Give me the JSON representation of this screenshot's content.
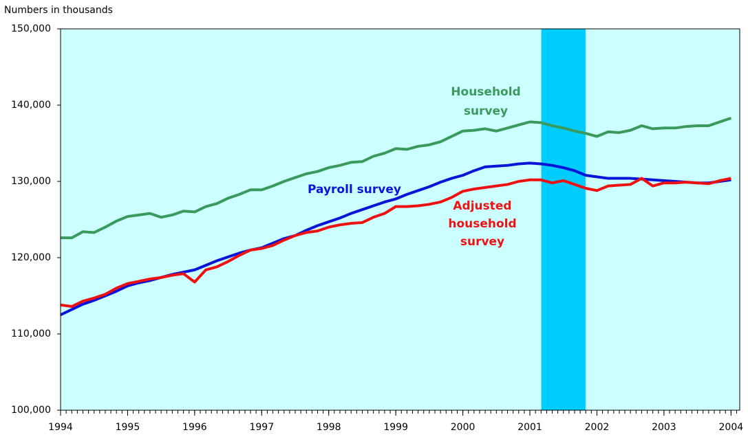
{
  "chart_data": {
    "type": "line",
    "subtitle": "Numbers in thousands",
    "background": "#ccffff",
    "shading": {
      "range": [
        2001.17,
        2001.83
      ],
      "color": "#00ccff"
    },
    "xlim": [
      1994,
      2004.13
    ],
    "xticks": [
      1994,
      1995,
      1996,
      1997,
      1998,
      1999,
      2000,
      2001,
      2002,
      2003,
      2004
    ],
    "ylim": [
      100000,
      150000
    ],
    "yticks": [
      {
        "value": 100000,
        "label": "100,000"
      },
      {
        "value": 110000,
        "label": "110,000"
      },
      {
        "value": 120000,
        "label": "120,000"
      },
      {
        "value": 130000,
        "label": "130,000"
      },
      {
        "value": 140000,
        "label": "140,000"
      },
      {
        "value": 150000,
        "label": "150,000"
      }
    ],
    "x": [
      1994,
      1994.167,
      1994.333,
      1994.5,
      1994.667,
      1994.833,
      1995,
      1995.167,
      1995.333,
      1995.5,
      1995.667,
      1995.833,
      1996,
      1996.167,
      1996.333,
      1996.5,
      1996.667,
      1996.833,
      1997,
      1997.167,
      1997.333,
      1997.5,
      1997.667,
      1997.833,
      1998,
      1998.167,
      1998.333,
      1998.5,
      1998.667,
      1998.833,
      1999,
      1999.167,
      1999.333,
      1999.5,
      1999.667,
      1999.833,
      2000,
      2000.167,
      2000.333,
      2000.5,
      2000.667,
      2000.833,
      2001,
      2001.167,
      2001.333,
      2001.5,
      2001.667,
      2001.833,
      2002,
      2002.167,
      2002.333,
      2002.5,
      2002.667,
      2002.833,
      2003,
      2003.167,
      2003.333,
      2003.5,
      2003.667,
      2003.833,
      2004
    ],
    "series": [
      {
        "name": [
          "Household",
          "survey"
        ],
        "color": "#3a9a5c",
        "values": [
          122600,
          122600,
          123400,
          123300,
          124000,
          124800,
          125400,
          125600,
          125800,
          125300,
          125600,
          126100,
          126000,
          126700,
          127100,
          127800,
          128300,
          128900,
          128900,
          129400,
          130000,
          130500,
          131000,
          131300,
          131800,
          132100,
          132500,
          132600,
          133300,
          133700,
          134300,
          134200,
          134600,
          134800,
          135200,
          135900,
          136600,
          136700,
          136900,
          136600,
          137000,
          137400,
          137800,
          137700,
          137300,
          137000,
          136600,
          136300,
          135900,
          136500,
          136400,
          136700,
          137300,
          136900,
          137000,
          137000,
          137200,
          137300,
          137300,
          137800,
          138300
        ]
      },
      {
        "name": [
          "Payroll survey"
        ],
        "color": "#0a14d8",
        "values": [
          112500,
          113200,
          113900,
          114400,
          115000,
          115600,
          116300,
          116700,
          117000,
          117400,
          117800,
          118100,
          118400,
          119000,
          119600,
          120100,
          120600,
          121000,
          121300,
          121900,
          122500,
          122900,
          123600,
          124200,
          124700,
          125200,
          125800,
          126300,
          126800,
          127300,
          127700,
          128300,
          128800,
          129300,
          129900,
          130400,
          130800,
          131400,
          131900,
          132000,
          132100,
          132300,
          132400,
          132300,
          132100,
          131800,
          131400,
          130800,
          130600,
          130400,
          130400,
          130400,
          130300,
          130200,
          130100,
          130000,
          129900,
          129800,
          129800,
          130000,
          130200
        ]
      },
      {
        "name": [
          "Adjusted",
          "household",
          "survey"
        ],
        "color": "#ee1111",
        "values": [
          113800,
          113600,
          114300,
          114700,
          115200,
          116000,
          116600,
          116900,
          117200,
          117400,
          117700,
          117900,
          116800,
          118400,
          118800,
          119500,
          120300,
          121000,
          121200,
          121600,
          122300,
          122900,
          123300,
          123500,
          124000,
          124300,
          124500,
          124600,
          125300,
          125800,
          126700,
          126700,
          126800,
          127000,
          127300,
          127900,
          128700,
          129000,
          129200,
          129400,
          129600,
          130000,
          130200,
          130200,
          129800,
          130100,
          129600,
          129100,
          128800,
          129400,
          129500,
          129600,
          130400,
          129400,
          129800,
          129800,
          129900,
          129800,
          129700,
          130100,
          130400
        ]
      }
    ]
  }
}
